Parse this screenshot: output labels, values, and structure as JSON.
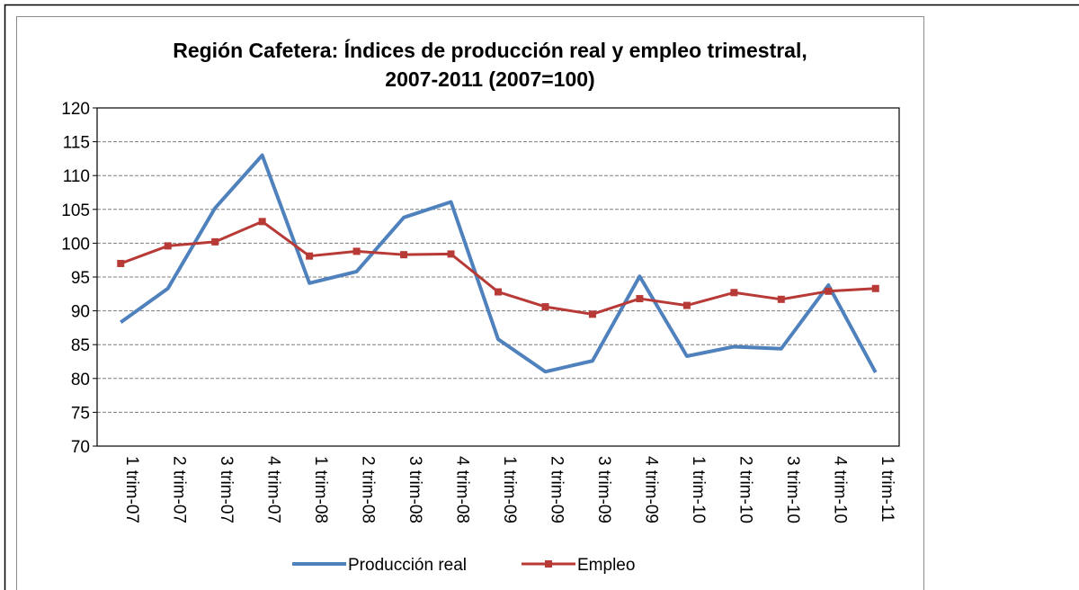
{
  "chart_data": {
    "type": "line",
    "title": "Región Cafetera: Índices de producción real y empleo trimestral, 2007-2011 (2007=100)",
    "categories": [
      "1 trim-07",
      "2 trim-07",
      "3 trim-07",
      "4 trim-07",
      "1 trim-08",
      "2 trim-08",
      "3 trim-08",
      "4 trim-08",
      "1 trim-09",
      "2 trim-09",
      "3 trim-09",
      "4 trim-09",
      "1 trim-10",
      "2 trim-10",
      "3 trim-10",
      "4 trim-10",
      "1 trim-11"
    ],
    "series": [
      {
        "name": "Producción real",
        "color": "#4f81bd",
        "marker": false,
        "values": [
          88.3,
          93.3,
          105.2,
          113.0,
          94.1,
          95.8,
          103.8,
          106.1,
          85.8,
          81.0,
          82.6,
          95.1,
          83.3,
          84.7,
          84.4,
          93.8,
          80.9
        ]
      },
      {
        "name": "Empleo",
        "color": "#b83a36",
        "marker": true,
        "values": [
          97.0,
          99.6,
          100.2,
          103.2,
          98.1,
          98.8,
          98.3,
          98.4,
          92.8,
          90.6,
          89.5,
          91.8,
          90.8,
          92.7,
          91.7,
          92.9,
          93.3
        ]
      }
    ],
    "ylim": [
      70,
      120
    ],
    "yticks": [
      70,
      75,
      80,
      85,
      90,
      95,
      100,
      105,
      110,
      115,
      120
    ],
    "grid": true,
    "legend": "bottom"
  }
}
